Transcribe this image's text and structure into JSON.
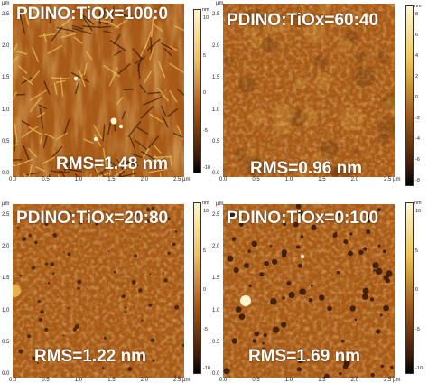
{
  "panels": [
    {
      "id": "p1",
      "title": "PDINO:TiOx=100:0",
      "rms": "RMS=1.48 nm",
      "texture": "fibrous",
      "colorbar_unit": "nm",
      "colorbar_ticks": [
        "10",
        "5",
        "0",
        "-5",
        "-10"
      ],
      "y_unit": "µm",
      "y_ticks": [
        "2.5",
        "2.0",
        "1.5",
        "1.0",
        "0.5",
        "0.0"
      ],
      "x_ticks": [
        "0.0",
        "0.5",
        "1.0",
        "1.5",
        "2.0",
        "2.5 µm"
      ]
    },
    {
      "id": "p2",
      "title": "PDINO:TiOx=60:40",
      "rms": "RMS=0.96 nm",
      "texture": "smooth",
      "colorbar_unit": "nm",
      "colorbar_ticks": [
        "8",
        "6",
        "4",
        "2",
        "0",
        "-2",
        "-4",
        "-6",
        "-8"
      ],
      "y_unit": "µm",
      "y_ticks": [
        "2.5",
        "2.0",
        "1.5",
        "1.0",
        "0.5",
        "0.0"
      ],
      "x_ticks": [
        "0.0",
        "0.5",
        "1.0",
        "1.5",
        "2.0",
        "2.5 µm"
      ]
    },
    {
      "id": "p3",
      "title": "PDINO:TiOx=20:80",
      "rms": "RMS=1.22 nm",
      "texture": "pitted",
      "colorbar_unit": "nm",
      "colorbar_ticks": [
        "10",
        "5",
        "0",
        "-5",
        "-10"
      ],
      "y_unit": "µm",
      "y_ticks": [
        "2.5",
        "2.0",
        "1.5",
        "1.0",
        "0.5",
        "0.0"
      ],
      "x_ticks": [
        "0.0",
        "0.5",
        "1.0",
        "1.5",
        "2.0",
        "2.5 µm"
      ]
    },
    {
      "id": "p4",
      "title": "PDINO:TiOx=0:100",
      "rms": "RMS=1.69 nm",
      "texture": "holes",
      "colorbar_unit": "nm",
      "colorbar_ticks": [
        "10",
        "5",
        "0",
        "-5",
        "-10"
      ],
      "y_unit": "µm",
      "y_ticks": [
        "2.5",
        "2.0",
        "1.5",
        "1.0",
        "0.5",
        "0.0"
      ],
      "x_ticks": [
        "0.0",
        "0.5",
        "1.0",
        "1.5",
        "2.0",
        "2.5 µm"
      ]
    }
  ],
  "colors": {
    "afm_dark": "#3a1a08",
    "afm_mid": "#a85a18",
    "afm_light": "#f0c45a",
    "afm_bright": "#fff6d0"
  }
}
